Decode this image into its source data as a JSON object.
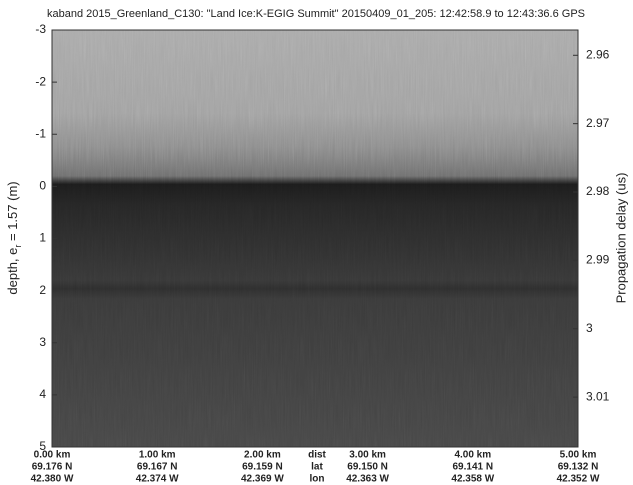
{
  "chart_data": {
    "type": "echogram",
    "title": "kaband 2015_Greenland_C130: \"Land Ice:K-EGIG Summit\"  20150409_01_205: 12:42:58.9 to 12:43:36.6 GPS",
    "y_label": {
      "main": "depth, e",
      "subscript": "r",
      "rest": " = 1.57 (m)"
    },
    "y2_label": "Propagation delay (us)",
    "ylim": [
      -3,
      5
    ],
    "yticks": [
      -3,
      -2,
      -1,
      0,
      1,
      2,
      3,
      4,
      5
    ],
    "y2lim": [
      2.9563,
      3.0173
    ],
    "y2ticks": [
      2.96,
      2.97,
      2.98,
      2.99,
      3,
      3.01
    ],
    "x_row_names": [
      "dist",
      "lat",
      "lon"
    ],
    "x_rows": [
      [
        "0.00 km",
        "1.00 km",
        "2.00 km",
        "3.00 km",
        "4.00 km",
        "5.00 km"
      ],
      [
        "69.176 N",
        "69.167 N",
        "69.159 N",
        "69.150 N",
        "69.141 N",
        "69.132 N"
      ],
      [
        "42.380 W",
        "42.374 W",
        "42.369 W",
        "42.363 W",
        "42.358 W",
        "42.352 W"
      ]
    ]
  }
}
